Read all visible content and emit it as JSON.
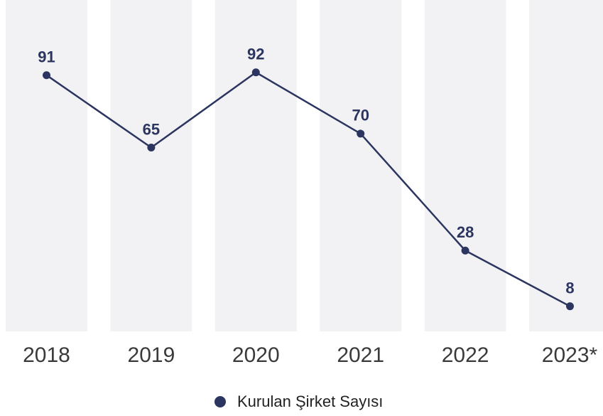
{
  "chart_data": {
    "type": "line",
    "categories": [
      "2018",
      "2019",
      "2020",
      "2021",
      "2022",
      "2023*"
    ],
    "series": [
      {
        "name": "Kurulan Şirket Sayısı",
        "color": "#2b3560",
        "values": [
          91,
          65,
          92,
          70,
          28,
          8
        ]
      }
    ],
    "ylim": [
      0,
      118
    ],
    "data_labels": true,
    "legend": "bottom"
  }
}
